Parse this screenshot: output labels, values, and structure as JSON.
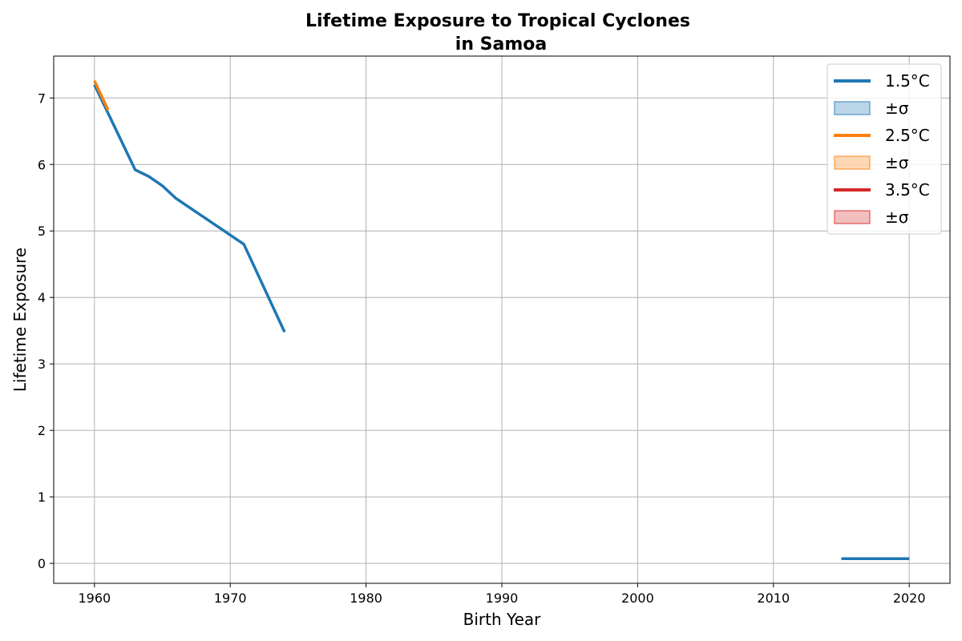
{
  "chart_data": {
    "type": "line",
    "title": "Lifetime Exposure to Tropical Cyclones",
    "subtitle": "in Samoa",
    "xlabel": "Birth Year",
    "ylabel": "Lifetime Exposure",
    "xlim": [
      1957,
      2023
    ],
    "ylim": [
      -0.3,
      7.63
    ],
    "xticks": [
      1960,
      1970,
      1980,
      1990,
      2000,
      2010,
      2020
    ],
    "yticks": [
      0,
      1,
      2,
      3,
      4,
      5,
      6,
      7
    ],
    "grid": true,
    "legend_position": "top-right",
    "series": [
      {
        "name": "1.5°C",
        "sigma_label": "±σ",
        "color": "#1f77b4",
        "segments": [
          [
            [
              1960,
              7.2
            ],
            [
              1963,
              5.92
            ],
            [
              1964,
              5.82
            ],
            [
              1965,
              5.68
            ],
            [
              1966,
              5.49
            ],
            [
              1971,
              4.8
            ],
            [
              1974,
              3.48
            ]
          ],
          [
            [
              2015,
              0.07
            ],
            [
              2020,
              0.07
            ]
          ]
        ]
      },
      {
        "name": "2.5°C",
        "sigma_label": "±σ",
        "color": "#ff7f0e",
        "segments": [
          [
            [
              1960,
              7.26
            ],
            [
              1961,
              6.82
            ]
          ]
        ]
      },
      {
        "name": "3.5°C",
        "sigma_label": "±σ",
        "color": "#d62728",
        "segments": []
      }
    ]
  }
}
